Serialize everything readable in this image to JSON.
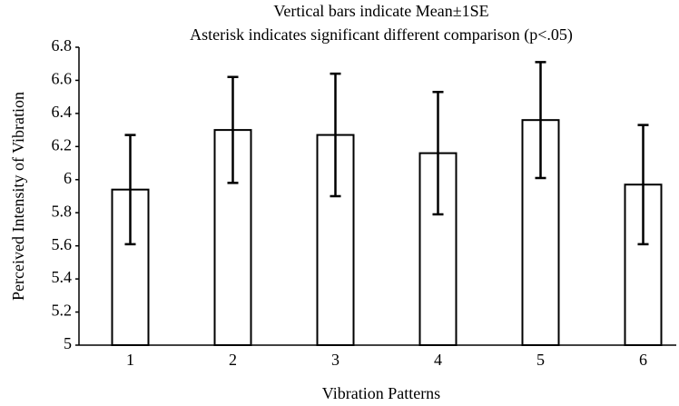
{
  "chart_data": {
    "type": "bar",
    "title": "Vertical bars indicate Mean±1SE",
    "subtitle": "Asterisk indicates significant different comparison (p<.05)",
    "x_label": "Vibration Patterns",
    "y_label": "Perceived Intensity of Vibration",
    "categories": [
      "1",
      "2",
      "3",
      "4",
      "5",
      "6"
    ],
    "values": [
      5.94,
      6.3,
      6.27,
      6.16,
      6.36,
      5.97
    ],
    "errors": [
      0.33,
      0.32,
      0.37,
      0.37,
      0.35,
      0.36
    ],
    "color": "#ffffff",
    "ylim": [
      5,
      6.8
    ],
    "yticks": [
      5,
      5.2,
      5.4,
      5.6,
      5.8,
      6,
      6.2,
      6.4,
      6.6,
      6.8
    ],
    "grid": false
  }
}
